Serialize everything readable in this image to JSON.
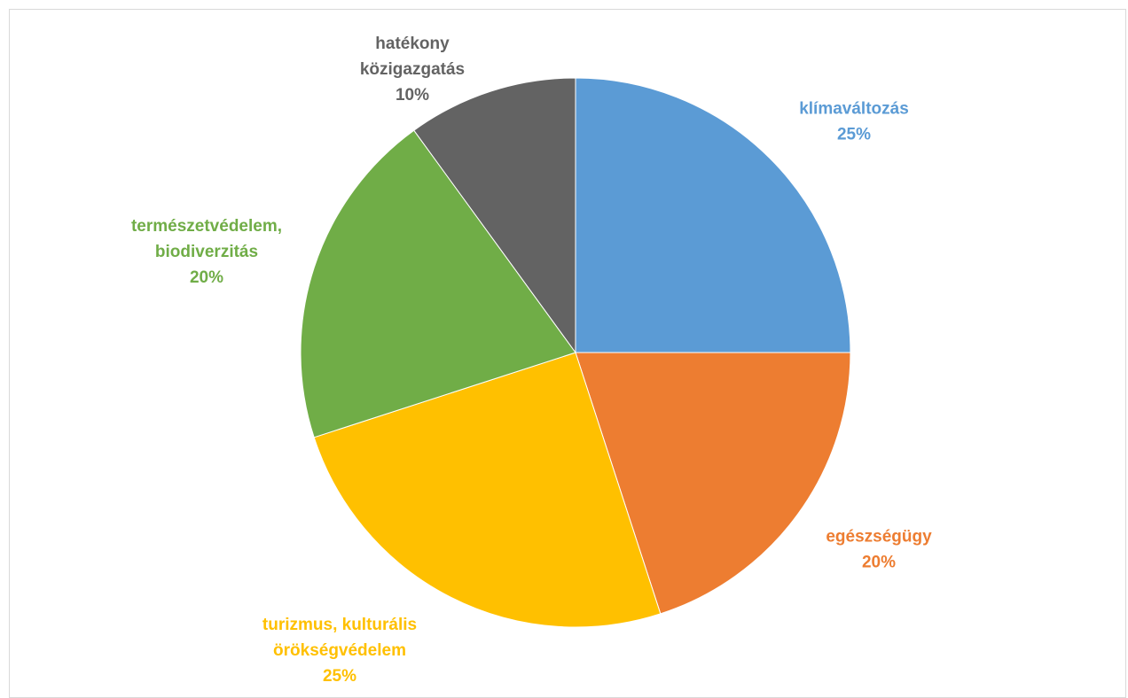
{
  "chart_data": {
    "type": "pie",
    "title": "",
    "start_angle_deg": 0,
    "direction": "clockwise",
    "slices": [
      {
        "label_lines": [
          "klímaváltozás"
        ],
        "value": 25,
        "percent_label": "25%",
        "color": "#5B9BD5"
      },
      {
        "label_lines": [
          "egészségügy"
        ],
        "value": 20,
        "percent_label": "20%",
        "color": "#ED7D31"
      },
      {
        "label_lines": [
          "turizmus, kulturális",
          "örökségvédelem"
        ],
        "value": 25,
        "percent_label": "25%",
        "color": "#FFC000"
      },
      {
        "label_lines": [
          "természetvédelem,",
          "biodiverzitás"
        ],
        "value": 20,
        "percent_label": "20%",
        "color": "#70AD47"
      },
      {
        "label_lines": [
          "hatékony",
          "közigazgatás"
        ],
        "value": 10,
        "percent_label": "10%",
        "color": "#636363"
      }
    ],
    "legend": "none"
  },
  "colors": {
    "border": "#D9D9D9",
    "background": "#FFFFFF"
  }
}
